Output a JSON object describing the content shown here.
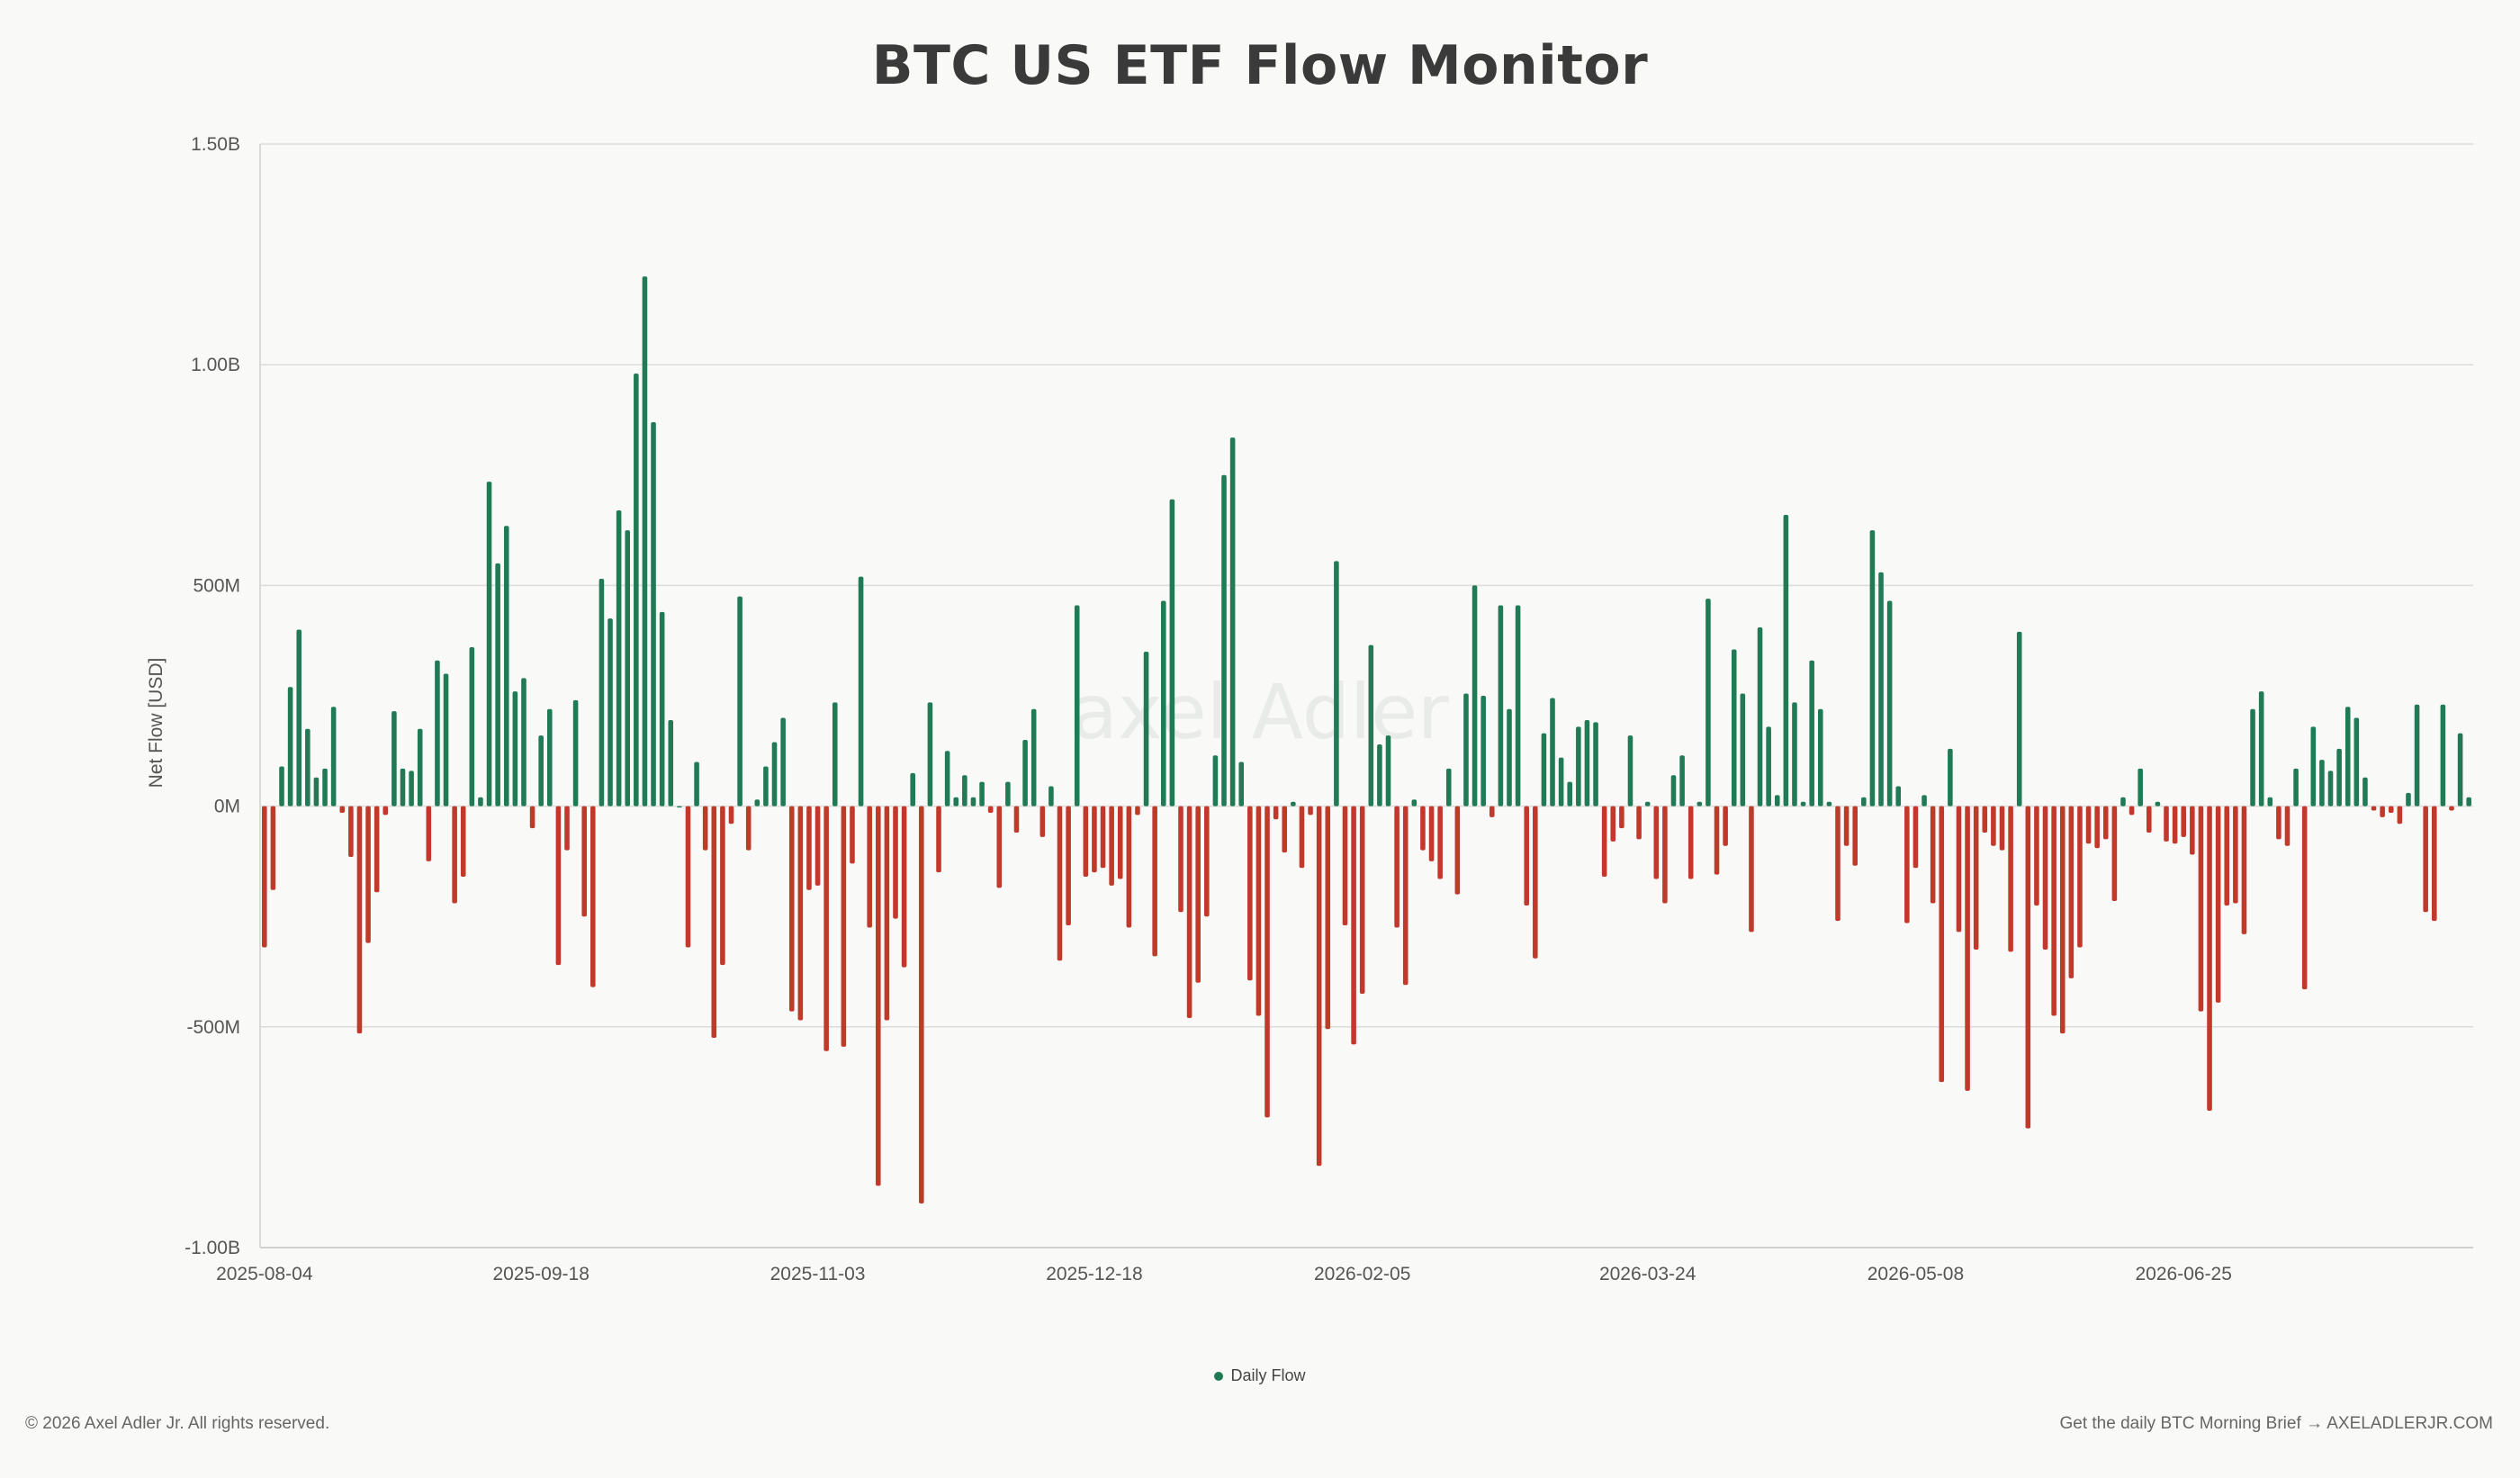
{
  "title": "BTC US ETF Flow Monitor",
  "watermark": "axel Adler",
  "legend": {
    "label": "Daily Flow"
  },
  "footer": {
    "copyright": "© 2026 Axel Adler Jr. All rights reserved.",
    "cta": "Get the daily BTC Morning Brief → AXELADLERJR.COM"
  },
  "colors": {
    "positive": "#1f7a55",
    "negative": "#c0392b",
    "grid": "#dcdcdc",
    "background": "#f9f9f7"
  },
  "chart_data": {
    "type": "bar",
    "title": "BTC US ETF Flow Monitor",
    "ylabel": "Net Flow [USD]",
    "xlabel": "",
    "ylim": [
      -1000000000,
      1500000000
    ],
    "y_ticks": [
      "1.50B",
      "1.00B",
      "500M",
      "0M",
      "-500M",
      "-1.00B"
    ],
    "y_tick_values": [
      1500000000,
      1000000000,
      500000000,
      0,
      -500000000,
      -1000000000
    ],
    "x_ticks": [
      "2025-08-04",
      "2025-09-18",
      "2025-11-03",
      "2025-12-18",
      "2026-02-05",
      "2026-03-24",
      "2026-05-08",
      "2026-06-25"
    ],
    "grid": true,
    "legend_position": "bottom-center",
    "series": [
      {
        "name": "Daily Flow",
        "unit": "USD millions",
        "values": [
          -320,
          -190,
          90,
          270,
          400,
          175,
          65,
          85,
          225,
          -15,
          -115,
          -515,
          -310,
          -195,
          -20,
          215,
          85,
          80,
          175,
          -125,
          330,
          300,
          -220,
          -160,
          360,
          20,
          735,
          550,
          635,
          260,
          290,
          -50,
          160,
          220,
          -360,
          -100,
          240,
          -250,
          -410,
          515,
          425,
          670,
          625,
          980,
          1200,
          870,
          440,
          195,
          0,
          -320,
          100,
          -100,
          -525,
          -360,
          -40,
          475,
          -100,
          15,
          90,
          145,
          200,
          -465,
          -485,
          -190,
          -180,
          -555,
          235,
          -545,
          -130,
          520,
          -275,
          -860,
          -485,
          -255,
          -365,
          75,
          -900,
          235,
          -150,
          125,
          20,
          70,
          20,
          55,
          -15,
          -185,
          55,
          -60,
          150,
          220,
          -70,
          45,
          -350,
          -270,
          455,
          -160,
          -150,
          -140,
          -180,
          -165,
          -275,
          -20,
          350,
          -340,
          465,
          695,
          -240,
          -480,
          -400,
          -250,
          115,
          750,
          835,
          100,
          -395,
          -475,
          -705,
          -30,
          -105,
          10,
          -140,
          -20,
          -815,
          -505,
          555,
          -270,
          -540,
          -425,
          365,
          140,
          160,
          -275,
          -405,
          15,
          -100,
          -125,
          -165,
          85,
          -200,
          255,
          500,
          250,
          -25,
          455,
          220,
          455,
          -225,
          -345,
          165,
          245,
          110,
          55,
          180,
          195,
          190,
          -160,
          -80,
          -50,
          160,
          -75,
          10,
          -165,
          -220,
          70,
          115,
          -165,
          10,
          470,
          -155,
          -90,
          355,
          255,
          -285,
          405,
          180,
          25,
          660,
          235,
          10,
          330,
          220,
          10,
          -260,
          -90,
          -135,
          20,
          625,
          530,
          465,
          45,
          -265,
          -140,
          25,
          -220,
          -625,
          130,
          -285,
          -645,
          -325,
          -60,
          -90,
          -100,
          -330,
          395,
          -730,
          -225,
          -325,
          -475,
          -515,
          -390,
          -320,
          -85,
          -95,
          -75,
          -215,
          20,
          -20,
          85,
          -60,
          10,
          -80,
          -85,
          -70,
          -110,
          -465,
          -690,
          -445,
          -225,
          -220,
          -290,
          220,
          260,
          20,
          -75,
          -90,
          85,
          -415,
          180,
          105,
          80,
          130,
          225,
          200,
          65,
          -10,
          -25,
          -15,
          -40,
          30,
          230,
          -240,
          -260,
          230,
          -10,
          165,
          20
        ]
      }
    ]
  }
}
